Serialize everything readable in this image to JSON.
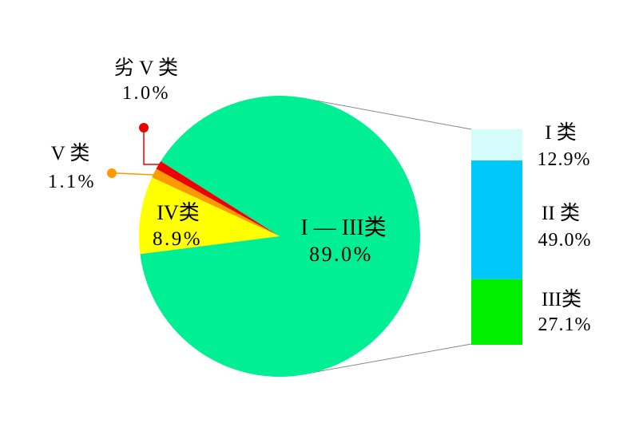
{
  "chart_data": {
    "type": "pie",
    "subtype": "pie-of-pie-breakdown",
    "unit": "percent",
    "background": "#FFFFFF",
    "connector_color": "#888888",
    "slices": [
      {
        "label": "I — III类",
        "pct_label": "89.0%",
        "value": 89.0,
        "color": "#00EF94"
      },
      {
        "label": "IV类",
        "pct_label": "8.9%",
        "value": 8.9,
        "color": "#FFFF00"
      },
      {
        "label": "V 类",
        "pct_label": "1.1%",
        "value": 1.1,
        "color": "#FF9900"
      },
      {
        "label": "劣 V 类",
        "pct_label": "1.0%",
        "value": 1.0,
        "color": "#EE0000"
      }
    ],
    "breakdown_bar": {
      "of_slice_label": "I — III类",
      "segments": [
        {
          "label": "I 类",
          "pct_label": "12.9%",
          "value": 12.9,
          "color": "#D5FBFB"
        },
        {
          "label": "II 类",
          "pct_label": "49.0%",
          "value": 49.0,
          "color": "#00C8FA"
        },
        {
          "label": "III类",
          "pct_label": "27.1%",
          "value": 27.1,
          "color": "#00EE00"
        }
      ]
    }
  }
}
